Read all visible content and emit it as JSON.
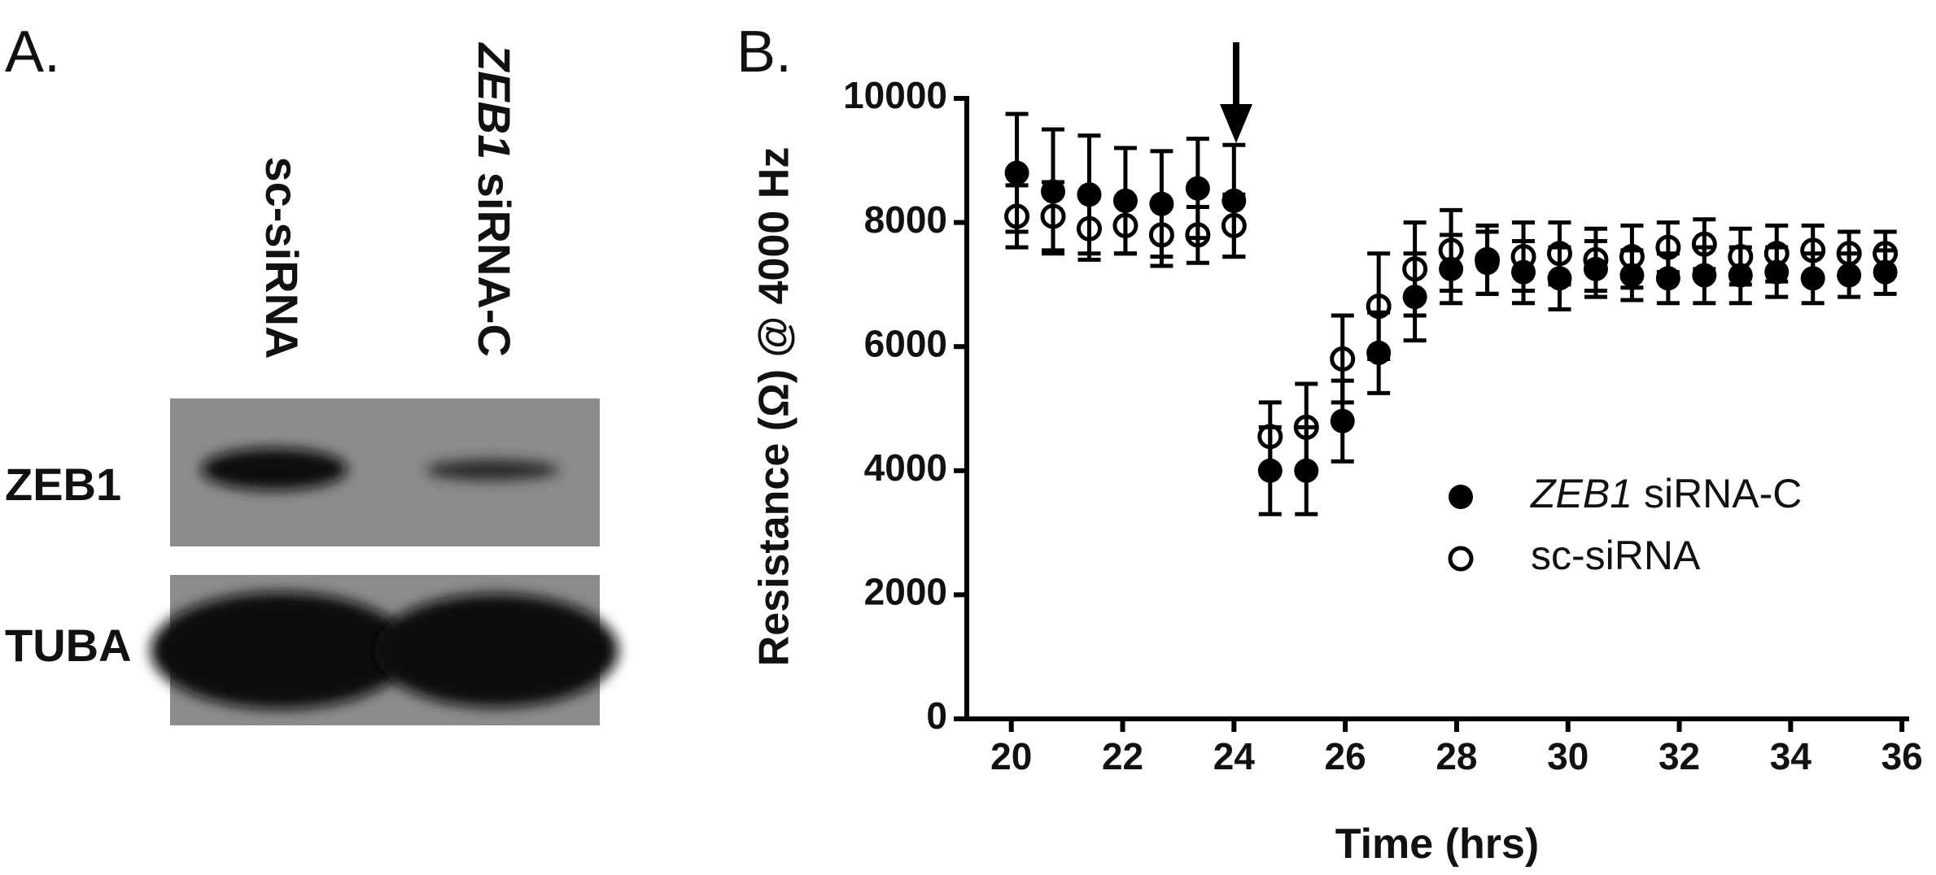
{
  "panel_a": {
    "label": "A.",
    "columns": [
      "sc-siRNA",
      "ZEB1 siRNA-C"
    ],
    "rows": [
      "ZEB1",
      "TUBA"
    ]
  },
  "chart_data": {
    "type": "scatter",
    "panel_label": "B.",
    "x_label": "Time (hrs)",
    "y_label": "Resistance (Ω) @ 4000 Hz",
    "x": [
      20.1,
      20.75,
      21.4,
      22.05,
      22.7,
      23.35,
      24.0,
      24.65,
      25.3,
      25.95,
      26.6,
      27.25,
      27.9,
      28.55,
      29.2,
      29.85,
      30.5,
      31.15,
      31.8,
      32.45,
      33.1,
      33.75,
      34.4,
      35.05,
      35.7
    ],
    "series": [
      {
        "name": "ZEB1 siRNA-C",
        "color": "#000000",
        "marker": "filled",
        "values": [
          8800,
          8500,
          8450,
          8350,
          8300,
          8550,
          8350,
          4000,
          4000,
          4800,
          5900,
          6800,
          7250,
          7350,
          7200,
          7100,
          7250,
          7150,
          7100,
          7150,
          7150,
          7200,
          7100,
          7150,
          7200
        ],
        "errors": [
          950,
          1000,
          950,
          850,
          850,
          800,
          900,
          700,
          700,
          650,
          650,
          700,
          550,
          500,
          500,
          500,
          450,
          400,
          400,
          450,
          450,
          400,
          400,
          350,
          350
        ]
      },
      {
        "name": "sc-siRNA",
        "color": "#000000",
        "marker": "open",
        "values": [
          8100,
          8100,
          7900,
          7950,
          7800,
          7800,
          7950,
          4550,
          4700,
          5800,
          6650,
          7250,
          7550,
          7400,
          7450,
          7500,
          7400,
          7450,
          7600,
          7650,
          7450,
          7500,
          7550,
          7500,
          7500
        ],
        "errors": [
          500,
          550,
          500,
          450,
          500,
          450,
          500,
          550,
          700,
          700,
          850,
          750,
          650,
          550,
          550,
          500,
          500,
          500,
          400,
          400,
          450,
          450,
          400,
          350,
          350
        ]
      }
    ],
    "xlim": [
      19.2,
      36.1
    ],
    "ylim": [
      0,
      10000
    ],
    "xticks": [
      20,
      22,
      24,
      26,
      28,
      30,
      32,
      34,
      36
    ],
    "yticks": [
      0,
      2000,
      4000,
      6000,
      8000,
      10000
    ]
  }
}
